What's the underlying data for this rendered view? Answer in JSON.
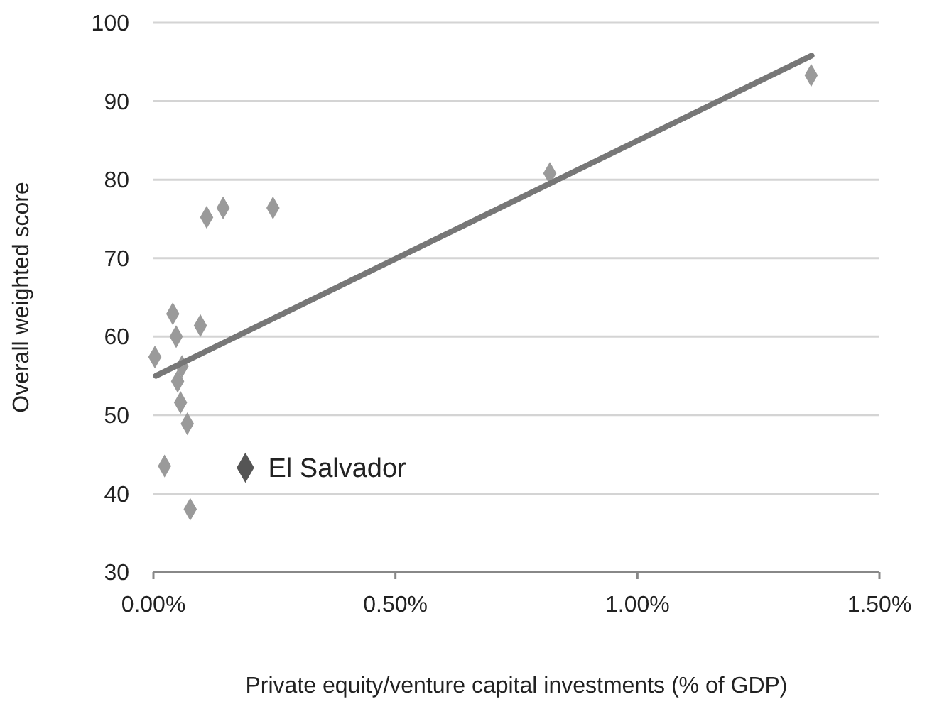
{
  "chart_data": {
    "type": "scatter",
    "xlabel": "Private equity/venture capital investments (% of GDP)",
    "ylabel": "Overall weighted score",
    "xlim": [
      0,
      1.5
    ],
    "xticks": [
      {
        "value": 0,
        "label": "0.00%"
      },
      {
        "value": 0.5,
        "label": "0.50%"
      },
      {
        "value": 1,
        "label": "1.00%"
      },
      {
        "value": 1.5,
        "label": "1.50%"
      }
    ],
    "ylim": [
      30,
      100
    ],
    "yticks": [
      30,
      40,
      50,
      60,
      70,
      80,
      90,
      100
    ],
    "grid": "y",
    "marker": "diamond",
    "series": [
      {
        "color": "#9a9a9a",
        "x": [
          0.003,
          0.023,
          0.04,
          0.047,
          0.05,
          0.059,
          0.056,
          0.07,
          0.076,
          0.097,
          0.11,
          0.144,
          0.247,
          0.819,
          1.359
        ],
        "values": [
          57.4,
          43.5,
          62.9,
          60,
          54.3,
          56.2,
          51.6,
          48.9,
          38,
          61.4,
          75.2,
          76.4,
          76.4,
          80.8,
          93.3
        ]
      },
      {
        "name": "El Salvador",
        "color": "#555555",
        "x": [
          0.19
        ],
        "values": [
          43.3
        ]
      },
      {
        "type": "line",
        "color": "#777777",
        "marker": "none",
        "x": [
          0.005,
          1.36
        ],
        "values": [
          55,
          95.8
        ]
      }
    ]
  }
}
